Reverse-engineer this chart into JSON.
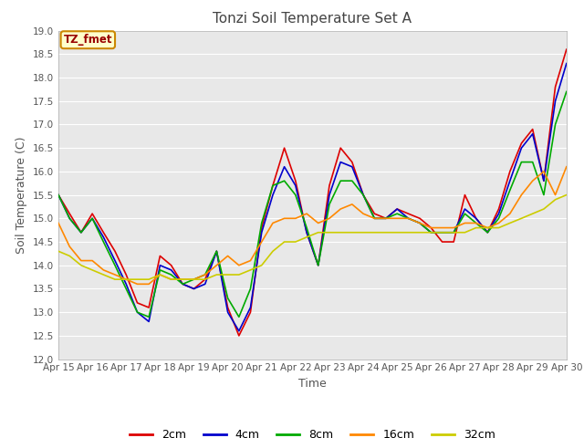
{
  "title": "Tonzi Soil Temperature Set A",
  "xlabel": "Time",
  "ylabel": "Soil Temperature (C)",
  "ylim": [
    12.0,
    19.0
  ],
  "yticks": [
    12.0,
    12.5,
    13.0,
    13.5,
    14.0,
    14.5,
    15.0,
    15.5,
    16.0,
    16.5,
    17.0,
    17.5,
    18.0,
    18.5,
    19.0
  ],
  "xtick_labels": [
    "Apr 15",
    "Apr 16",
    "Apr 17",
    "Apr 18",
    "Apr 19",
    "Apr 20",
    "Apr 21",
    "Apr 22",
    "Apr 23",
    "Apr 24",
    "Apr 25",
    "Apr 26",
    "Apr 27",
    "Apr 28",
    "Apr 29",
    "Apr 30"
  ],
  "fig_bg_color": "#ffffff",
  "plot_bg_color": "#e8e8e8",
  "grid_color": "#ffffff",
  "annotation_text": "TZ_fmet",
  "annotation_color": "#990000",
  "annotation_bg": "#ffffcc",
  "annotation_border": "#cc8800",
  "series": {
    "2cm": {
      "color": "#dd0000",
      "linewidth": 1.2,
      "x": [
        0,
        0.33,
        0.67,
        1.0,
        1.33,
        1.67,
        2.0,
        2.33,
        2.67,
        3.0,
        3.33,
        3.67,
        4.0,
        4.33,
        4.67,
        5.0,
        5.33,
        5.67,
        6.0,
        6.33,
        6.67,
        7.0,
        7.33,
        7.67,
        8.0,
        8.33,
        8.67,
        9.0,
        9.33,
        9.67,
        10.0,
        10.33,
        10.67,
        11.0,
        11.33,
        11.67,
        12.0,
        12.33,
        12.67,
        13.0,
        13.33,
        13.67,
        14.0,
        14.33,
        14.67,
        15.0
      ],
      "y": [
        15.5,
        15.1,
        14.7,
        15.1,
        14.7,
        14.3,
        13.8,
        13.2,
        13.1,
        14.2,
        14.0,
        13.6,
        13.5,
        13.7,
        14.3,
        13.1,
        12.5,
        13.0,
        14.8,
        15.7,
        16.5,
        15.8,
        14.7,
        14.0,
        15.7,
        16.5,
        16.2,
        15.5,
        15.1,
        15.0,
        15.2,
        15.1,
        15.0,
        14.8,
        14.5,
        14.5,
        15.5,
        15.0,
        14.7,
        15.2,
        16.0,
        16.6,
        16.9,
        15.8,
        17.8,
        18.6
      ]
    },
    "4cm": {
      "color": "#0000cc",
      "linewidth": 1.2,
      "x": [
        0,
        0.33,
        0.67,
        1.0,
        1.33,
        1.67,
        2.0,
        2.33,
        2.67,
        3.0,
        3.33,
        3.67,
        4.0,
        4.33,
        4.67,
        5.0,
        5.33,
        5.67,
        6.0,
        6.33,
        6.67,
        7.0,
        7.33,
        7.67,
        8.0,
        8.33,
        8.67,
        9.0,
        9.33,
        9.67,
        10.0,
        10.33,
        10.67,
        11.0,
        11.33,
        11.67,
        12.0,
        12.33,
        12.67,
        13.0,
        13.33,
        13.67,
        14.0,
        14.33,
        14.67,
        15.0
      ],
      "y": [
        15.5,
        15.0,
        14.7,
        15.0,
        14.6,
        14.1,
        13.6,
        13.0,
        12.8,
        14.0,
        13.9,
        13.6,
        13.5,
        13.6,
        14.3,
        13.0,
        12.6,
        13.1,
        14.7,
        15.5,
        16.1,
        15.7,
        14.7,
        14.0,
        15.5,
        16.2,
        16.1,
        15.5,
        15.0,
        15.0,
        15.2,
        15.0,
        14.9,
        14.7,
        14.7,
        14.7,
        15.2,
        15.0,
        14.7,
        15.1,
        15.8,
        16.5,
        16.8,
        15.8,
        17.5,
        18.3
      ]
    },
    "8cm": {
      "color": "#00aa00",
      "linewidth": 1.2,
      "x": [
        0,
        0.33,
        0.67,
        1.0,
        1.33,
        1.67,
        2.0,
        2.33,
        2.67,
        3.0,
        3.33,
        3.67,
        4.0,
        4.33,
        4.67,
        5.0,
        5.33,
        5.67,
        6.0,
        6.33,
        6.67,
        7.0,
        7.33,
        7.67,
        8.0,
        8.33,
        8.67,
        9.0,
        9.33,
        9.67,
        10.0,
        10.33,
        10.67,
        11.0,
        11.33,
        11.67,
        12.0,
        12.33,
        12.67,
        13.0,
        13.33,
        13.67,
        14.0,
        14.33,
        14.67,
        15.0
      ],
      "y": [
        15.5,
        15.0,
        14.7,
        15.0,
        14.5,
        14.0,
        13.5,
        13.0,
        12.9,
        13.9,
        13.8,
        13.6,
        13.7,
        13.8,
        14.3,
        13.3,
        12.9,
        13.5,
        14.9,
        15.7,
        15.8,
        15.5,
        14.8,
        14.0,
        15.3,
        15.8,
        15.8,
        15.5,
        15.0,
        15.0,
        15.1,
        15.0,
        14.9,
        14.7,
        14.7,
        14.7,
        15.1,
        14.9,
        14.7,
        15.0,
        15.6,
        16.2,
        16.2,
        15.5,
        17.0,
        17.7
      ]
    },
    "16cm": {
      "color": "#ff8800",
      "linewidth": 1.2,
      "x": [
        0,
        0.33,
        0.67,
        1.0,
        1.33,
        1.67,
        2.0,
        2.33,
        2.67,
        3.0,
        3.33,
        3.67,
        4.0,
        4.33,
        4.67,
        5.0,
        5.33,
        5.67,
        6.0,
        6.33,
        6.67,
        7.0,
        7.33,
        7.67,
        8.0,
        8.33,
        8.67,
        9.0,
        9.33,
        9.67,
        10.0,
        10.33,
        10.67,
        11.0,
        11.33,
        11.67,
        12.0,
        12.33,
        12.67,
        13.0,
        13.33,
        13.67,
        14.0,
        14.33,
        14.67,
        15.0
      ],
      "y": [
        14.9,
        14.4,
        14.1,
        14.1,
        13.9,
        13.8,
        13.7,
        13.6,
        13.6,
        13.8,
        13.7,
        13.7,
        13.7,
        13.8,
        14.0,
        14.2,
        14.0,
        14.1,
        14.5,
        14.9,
        15.0,
        15.0,
        15.1,
        14.9,
        15.0,
        15.2,
        15.3,
        15.1,
        15.0,
        15.0,
        15.0,
        15.0,
        14.9,
        14.8,
        14.8,
        14.8,
        14.9,
        14.9,
        14.8,
        14.9,
        15.1,
        15.5,
        15.8,
        16.0,
        15.5,
        16.1
      ]
    },
    "32cm": {
      "color": "#cccc00",
      "linewidth": 1.2,
      "x": [
        0,
        0.33,
        0.67,
        1.0,
        1.33,
        1.67,
        2.0,
        2.33,
        2.67,
        3.0,
        3.33,
        3.67,
        4.0,
        4.33,
        4.67,
        5.0,
        5.33,
        5.67,
        6.0,
        6.33,
        6.67,
        7.0,
        7.33,
        7.67,
        8.0,
        8.33,
        8.67,
        9.0,
        9.33,
        9.67,
        10.0,
        10.33,
        10.67,
        11.0,
        11.33,
        11.67,
        12.0,
        12.33,
        12.67,
        13.0,
        13.33,
        13.67,
        14.0,
        14.33,
        14.67,
        15.0
      ],
      "y": [
        14.3,
        14.2,
        14.0,
        13.9,
        13.8,
        13.7,
        13.7,
        13.7,
        13.7,
        13.8,
        13.7,
        13.7,
        13.7,
        13.7,
        13.8,
        13.8,
        13.8,
        13.9,
        14.0,
        14.3,
        14.5,
        14.5,
        14.6,
        14.7,
        14.7,
        14.7,
        14.7,
        14.7,
        14.7,
        14.7,
        14.7,
        14.7,
        14.7,
        14.7,
        14.7,
        14.7,
        14.7,
        14.8,
        14.8,
        14.8,
        14.9,
        15.0,
        15.1,
        15.2,
        15.4,
        15.5
      ]
    }
  }
}
